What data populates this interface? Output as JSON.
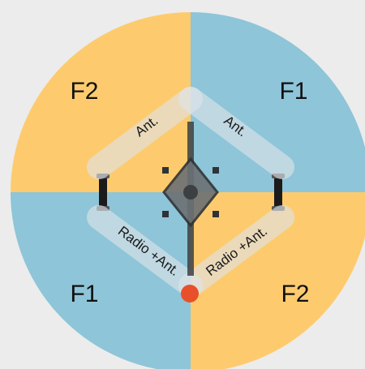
{
  "colors": {
    "background": "#ececec",
    "quadrant_blue": "#8ec5d8",
    "quadrant_orange": "#fdcb6e",
    "frame": "#dfe4e8",
    "frame_edge": "#b9c3cb",
    "marker": "#e8502a"
  },
  "quadrants": {
    "top_left": {
      "label": "F2",
      "color_key": "quadrant_orange"
    },
    "top_right": {
      "label": "F1",
      "color_key": "quadrant_blue"
    },
    "bottom_left": {
      "label": "F1",
      "color_key": "quadrant_blue"
    },
    "bottom_right": {
      "label": "F2",
      "color_key": "quadrant_orange"
    }
  },
  "bands": {
    "upper_left": {
      "label": "Ant."
    },
    "upper_right": {
      "label": "Ant."
    },
    "lower_left": {
      "label": "Radio +Ant."
    },
    "lower_right": {
      "label": "Radio +Ant."
    }
  },
  "marker": {
    "icon": "radio-position-dot"
  },
  "icons": {
    "center": "drone-body-icon",
    "left_arm": "left-arm-strut-icon",
    "right_arm": "right-arm-strut-icon"
  }
}
